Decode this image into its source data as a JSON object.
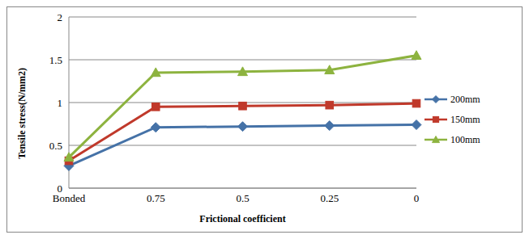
{
  "chart_data": {
    "type": "line",
    "x_label": "Frictional coefficient",
    "y_label": "Tensile stress(N/mm2)",
    "categories": [
      "Bonded",
      "0.75",
      "0.5",
      "0.25",
      "0"
    ],
    "series": [
      {
        "name": "200mm",
        "color": "#4572a7",
        "marker": "diamond",
        "values": [
          0.26,
          0.71,
          0.72,
          0.73,
          0.74
        ]
      },
      {
        "name": "150mm",
        "color": "#c0392b",
        "marker": "square",
        "values": [
          0.32,
          0.95,
          0.96,
          0.97,
          0.99
        ]
      },
      {
        "name": "100mm",
        "color": "#8db33f",
        "marker": "triangle",
        "values": [
          0.36,
          1.35,
          1.36,
          1.38,
          1.55
        ]
      }
    ],
    "ylim": [
      0,
      2
    ],
    "yticks": [
      0,
      0.5,
      1,
      1.5,
      2
    ],
    "grid": true,
    "legend": "right"
  }
}
